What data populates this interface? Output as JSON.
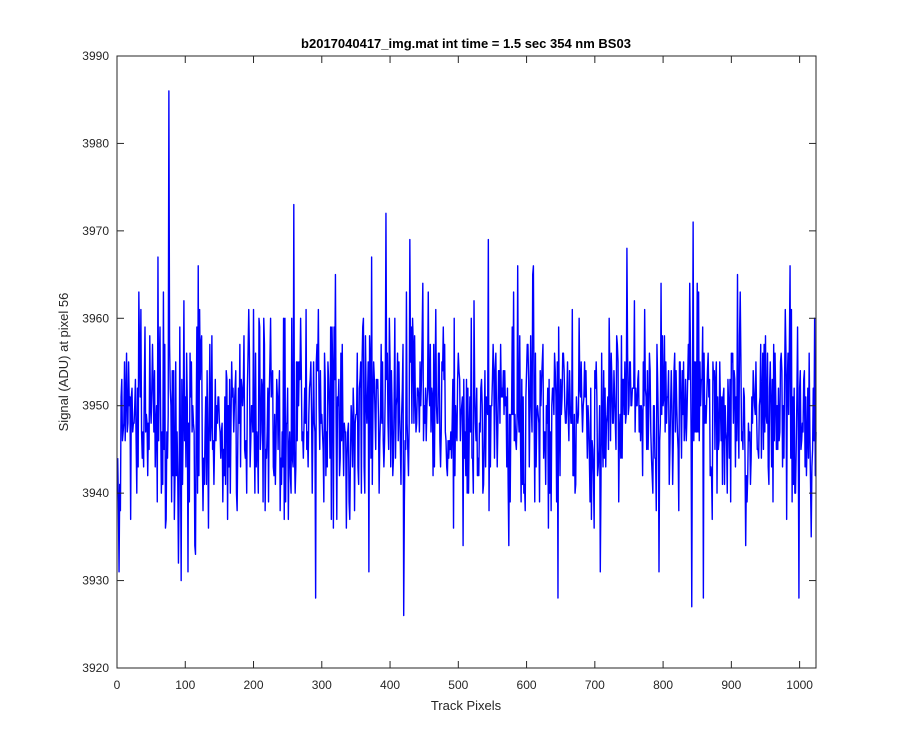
{
  "chart_data": {
    "type": "line",
    "title": "b2017040417_img.mat int time = 1.5 sec  354 nm BS03",
    "xlabel": "Track Pixels",
    "ylabel": "Signal (ADU) at pixel 56",
    "xlim": [
      0,
      1024
    ],
    "ylim": [
      3920,
      3990
    ],
    "xticks": [
      0,
      100,
      200,
      300,
      400,
      500,
      600,
      700,
      800,
      900,
      1000
    ],
    "yticks": [
      3920,
      3930,
      3940,
      3950,
      3960,
      3970,
      3980,
      3990
    ],
    "grid": false,
    "legend": "none",
    "series": [
      {
        "color": "#0000ff",
        "noise": {
          "n_points": 1024,
          "mean": 3949,
          "std": 6.2,
          "seed": 20170404,
          "clip": [
            3926,
            3986
          ]
        },
        "features": [
          {
            "x": 3,
            "y": 3941
          },
          {
            "x": 31,
            "y": 3963
          },
          {
            "x": 59,
            "y": 3967
          },
          {
            "x": 75,
            "y": 3986
          },
          {
            "x": 103,
            "y": 3931
          },
          {
            "x": 118,
            "y": 3966
          },
          {
            "x": 258,
            "y": 3973
          },
          {
            "x": 290,
            "y": 3928
          },
          {
            "x": 368,
            "y": 3931
          },
          {
            "x": 393,
            "y": 3972
          },
          {
            "x": 419,
            "y": 3926
          },
          {
            "x": 543,
            "y": 3969
          },
          {
            "x": 645,
            "y": 3928
          },
          {
            "x": 746,
            "y": 3968
          },
          {
            "x": 841,
            "y": 3927
          },
          {
            "x": 843,
            "y": 3971
          },
          {
            "x": 858,
            "y": 3928
          },
          {
            "x": 985,
            "y": 3966
          },
          {
            "x": 998,
            "y": 3928
          },
          {
            "x": 1016,
            "y": 3935
          }
        ]
      }
    ]
  }
}
